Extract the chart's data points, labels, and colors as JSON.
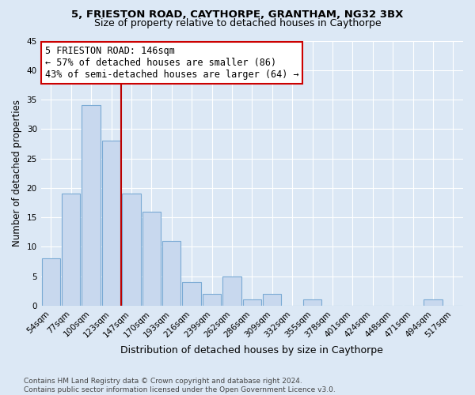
{
  "title1": "5, FRIESTON ROAD, CAYTHORPE, GRANTHAM, NG32 3BX",
  "title2": "Size of property relative to detached houses in Caythorpe",
  "xlabel": "Distribution of detached houses by size in Caythorpe",
  "ylabel": "Number of detached properties",
  "categories": [
    "54sqm",
    "77sqm",
    "100sqm",
    "123sqm",
    "147sqm",
    "170sqm",
    "193sqm",
    "216sqm",
    "239sqm",
    "262sqm",
    "286sqm",
    "309sqm",
    "332sqm",
    "355sqm",
    "378sqm",
    "401sqm",
    "424sqm",
    "448sqm",
    "471sqm",
    "494sqm",
    "517sqm"
  ],
  "values": [
    8,
    19,
    34,
    28,
    19,
    16,
    11,
    4,
    2,
    5,
    1,
    2,
    0,
    1,
    0,
    0,
    0,
    0,
    0,
    1,
    0
  ],
  "bar_color": "#c8d8ee",
  "bar_edge_color": "#7aaad4",
  "vline_color": "#bb0000",
  "annotation_line1": "5 FRIESTON ROAD: 146sqm",
  "annotation_line2": "← 57% of detached houses are smaller (86)",
  "annotation_line3": "43% of semi-detached houses are larger (64) →",
  "annotation_box_color": "#ffffff",
  "annotation_box_edge": "#cc0000",
  "footer_text": "Contains HM Land Registry data © Crown copyright and database right 2024.\nContains public sector information licensed under the Open Government Licence v3.0.",
  "ylim": [
    0,
    45
  ],
  "yticks": [
    0,
    5,
    10,
    15,
    20,
    25,
    30,
    35,
    40,
    45
  ],
  "bg_color": "#dce8f5",
  "grid_color": "#ffffff",
  "title1_fontsize": 9.5,
  "title2_fontsize": 9,
  "xlabel_fontsize": 9,
  "ylabel_fontsize": 8.5,
  "tick_fontsize": 7.5,
  "annot_fontsize": 8.5,
  "footer_fontsize": 6.5
}
